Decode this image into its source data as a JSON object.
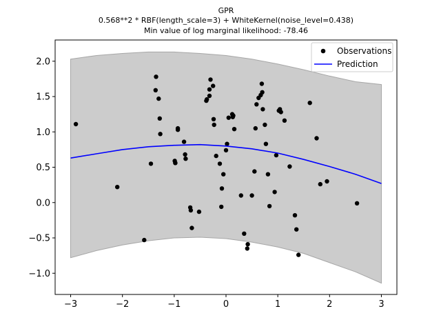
{
  "chart_data": {
    "type": "scatter",
    "title_lines": [
      "GPR",
      "0.568**2 * RBF(length_scale=3) + WhiteKernel(noise_level=0.438)",
      "Min value of log marginal likelihood: -78.46"
    ],
    "xlim": [
      -3.3,
      3.3
    ],
    "ylim": [
      -1.3,
      2.3
    ],
    "x_ticks": [
      -3,
      -2,
      -1,
      0,
      1,
      2,
      3
    ],
    "x_tick_labels": [
      "−3",
      "−2",
      "−1",
      "0",
      "1",
      "2",
      "3"
    ],
    "y_ticks": [
      -1.0,
      -0.5,
      0.0,
      0.5,
      1.0,
      1.5,
      2.0
    ],
    "y_tick_labels": [
      "−1.0",
      "−0.5",
      "0.0",
      "0.5",
      "1.0",
      "1.5",
      "2.0"
    ],
    "legend": {
      "placement": "upper-right",
      "entries": [
        {
          "label": "Observations",
          "marker": "dot",
          "color": "#000000"
        },
        {
          "label": "Prediction",
          "marker": "line",
          "color": "#0000ff"
        }
      ]
    },
    "colors": {
      "observations": "#000000",
      "prediction": "#0000ff",
      "band_fill": "#cccccc",
      "band_edge": "#a6a6a6"
    },
    "observations": {
      "name": "Observations",
      "x": [
        -2.9,
        -2.1,
        -1.58,
        -1.45,
        -1.36,
        -1.35,
        -1.3,
        -1.28,
        -1.27,
        -0.99,
        -0.98,
        -0.98,
        -0.93,
        -0.93,
        -0.81,
        -0.79,
        -0.78,
        -0.69,
        -0.68,
        -0.66,
        -0.52,
        -0.38,
        -0.37,
        -0.32,
        -0.32,
        -0.3,
        -0.25,
        -0.24,
        -0.23,
        -0.19,
        -0.12,
        -0.09,
        -0.08,
        -0.05,
        0.0,
        0.02,
        0.05,
        0.12,
        0.13,
        0.14,
        0.16,
        0.29,
        0.35,
        0.41,
        0.42,
        0.5,
        0.55,
        0.57,
        0.59,
        0.63,
        0.67,
        0.69,
        0.7,
        0.71,
        0.75,
        0.77,
        0.81,
        0.84,
        0.94,
        0.97,
        1.02,
        1.04,
        1.06,
        1.13,
        1.23,
        1.33,
        1.36,
        1.4,
        1.62,
        1.75,
        1.82,
        1.95,
        2.53
      ],
      "y": [
        1.11,
        0.22,
        -0.53,
        0.55,
        1.59,
        1.78,
        1.47,
        1.19,
        0.97,
        0.59,
        0.56,
        0.56,
        1.05,
        1.03,
        0.86,
        0.68,
        0.62,
        -0.07,
        -0.11,
        -0.36,
        -0.13,
        1.44,
        1.46,
        1.51,
        1.6,
        1.74,
        1.65,
        1.18,
        1.1,
        0.66,
        0.55,
        -0.06,
        0.2,
        0.4,
        0.74,
        0.83,
        1.2,
        1.25,
        1.21,
        1.23,
        1.04,
        0.1,
        -0.44,
        -0.65,
        -0.59,
        0.1,
        0.44,
        1.05,
        1.39,
        1.48,
        1.52,
        1.68,
        1.56,
        1.32,
        1.1,
        0.83,
        0.4,
        -0.05,
        0.15,
        0.67,
        1.3,
        1.32,
        1.28,
        1.16,
        0.51,
        -0.18,
        -0.38,
        -0.74,
        1.41,
        0.91,
        0.26,
        0.3,
        -0.01
      ]
    },
    "prediction": {
      "name": "Prediction",
      "x": [
        -3.0,
        -2.5,
        -2.0,
        -1.5,
        -1.0,
        -0.5,
        0.0,
        0.5,
        1.0,
        1.5,
        2.0,
        2.5,
        3.0
      ],
      "mean": [
        0.63,
        0.69,
        0.75,
        0.79,
        0.81,
        0.82,
        0.8,
        0.76,
        0.7,
        0.61,
        0.51,
        0.4,
        0.27
      ],
      "upper": [
        2.03,
        2.08,
        2.11,
        2.13,
        2.13,
        2.11,
        2.08,
        2.03,
        1.96,
        1.88,
        1.79,
        1.71,
        1.67
      ],
      "lower": [
        -0.78,
        -0.68,
        -0.6,
        -0.54,
        -0.5,
        -0.49,
        -0.51,
        -0.56,
        -0.63,
        -0.72,
        -0.85,
        -0.98,
        -1.14
      ]
    }
  }
}
